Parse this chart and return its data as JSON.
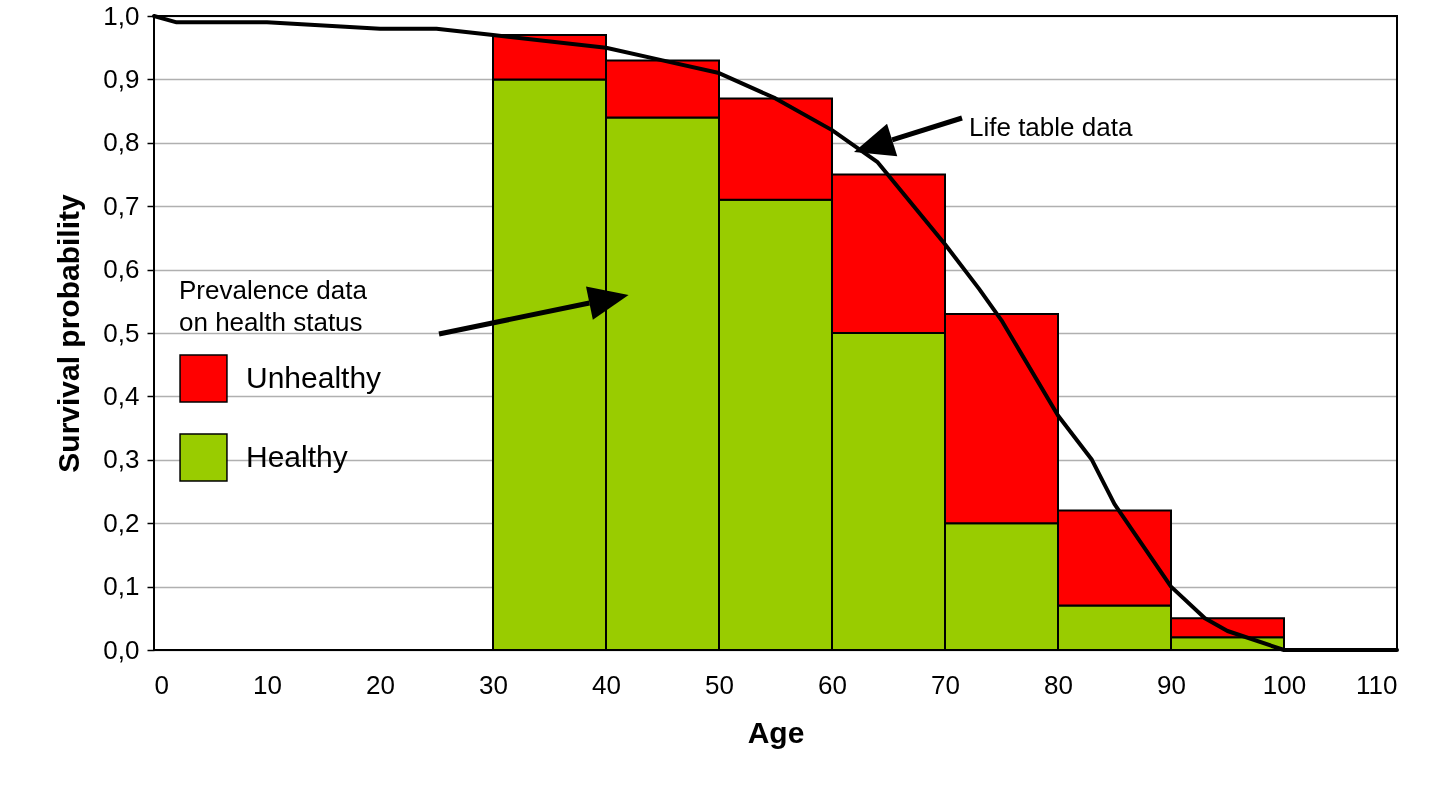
{
  "chart_data": {
    "type": "bar",
    "xlabel": "Age",
    "ylabel": "Survival probability",
    "legend_title": "Prevalence data\non health status",
    "legend": "left",
    "grid": "y",
    "stacked": true,
    "x": [
      35,
      45,
      55,
      65,
      75,
      85,
      95
    ],
    "series": [
      {
        "name": "Healthy",
        "color": "#99cc00",
        "values": [
          0.9,
          0.84,
          0.71,
          0.5,
          0.2,
          0.07,
          0.02
        ]
      },
      {
        "name": "Unhealthy",
        "color": "#ff0000",
        "values": [
          0.07,
          0.09,
          0.16,
          0.25,
          0.33,
          0.15,
          0.03
        ]
      },
      {
        "type": "line",
        "color": "#000000",
        "x": [
          0,
          2,
          10,
          20,
          25,
          30,
          40,
          45,
          50,
          55,
          60,
          64,
          70,
          73,
          75,
          80,
          83,
          85,
          90,
          93,
          95,
          100,
          110
        ],
        "values": [
          1.0,
          0.99,
          0.99,
          0.98,
          0.98,
          0.97,
          0.95,
          0.93,
          0.91,
          0.87,
          0.82,
          0.77,
          0.64,
          0.57,
          0.52,
          0.37,
          0.3,
          0.23,
          0.1,
          0.05,
          0.03,
          0.0,
          0.0
        ]
      }
    ],
    "annotations": [
      "Life table data"
    ],
    "xlim": [
      0,
      110
    ],
    "xticks": [
      0,
      10,
      20,
      30,
      40,
      50,
      60,
      70,
      80,
      90,
      100,
      110
    ],
    "ylim": [
      0,
      1
    ],
    "yticks": [
      {
        "value": 0,
        "label": "0,0"
      },
      {
        "value": 0.1,
        "label": "0,1"
      },
      {
        "value": 0.2,
        "label": "0,2"
      },
      {
        "value": 0.3,
        "label": "0,3"
      },
      {
        "value": 0.4,
        "label": "0,4"
      },
      {
        "value": 0.5,
        "label": "0,5"
      },
      {
        "value": 0.6,
        "label": "0,6"
      },
      {
        "value": 0.7,
        "label": "0,7"
      },
      {
        "value": 0.8,
        "label": "0,8"
      },
      {
        "value": 0.9,
        "label": "0,9"
      },
      {
        "value": 1,
        "label": "1,0"
      }
    ]
  }
}
